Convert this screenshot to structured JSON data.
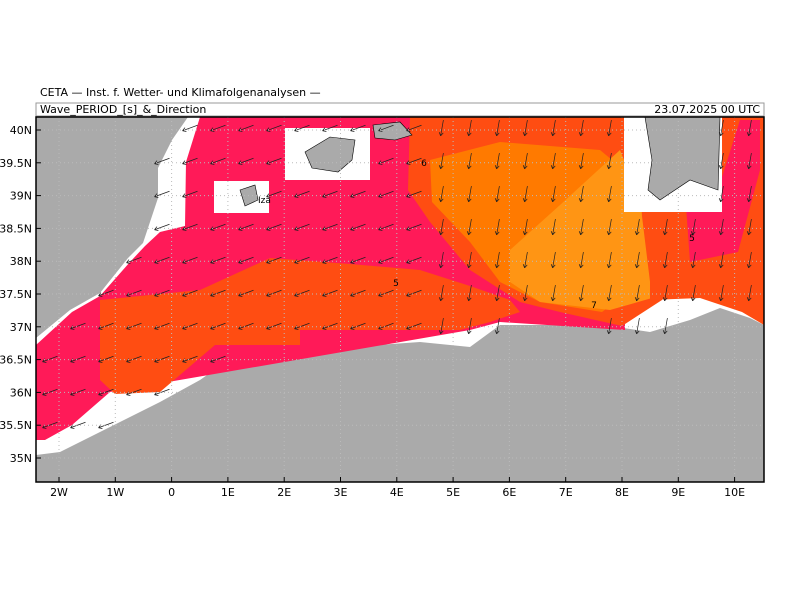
{
  "header": {
    "institute": "CETA — Inst. f. Wetter- und Klimafolgenanalysen —",
    "title": "Wave_PERIOD_[s]_&_Direction",
    "valid_time": "23.07.2025 00 UTC"
  },
  "axes": {
    "lat_labels": [
      "40N",
      "39.5N",
      "39N",
      "38.5N",
      "38N",
      "37.5N",
      "37N",
      "36.5N",
      "36N",
      "35.5N",
      "35N"
    ],
    "lon_labels": [
      "2W",
      "1W",
      "0",
      "1E",
      "2E",
      "3E",
      "4E",
      "5E",
      "6E",
      "7E",
      "8E",
      "9E",
      "10E"
    ]
  },
  "map_labels": {
    "place": "Iza",
    "contours": [
      "6",
      "5",
      "5",
      "7"
    ]
  }
}
